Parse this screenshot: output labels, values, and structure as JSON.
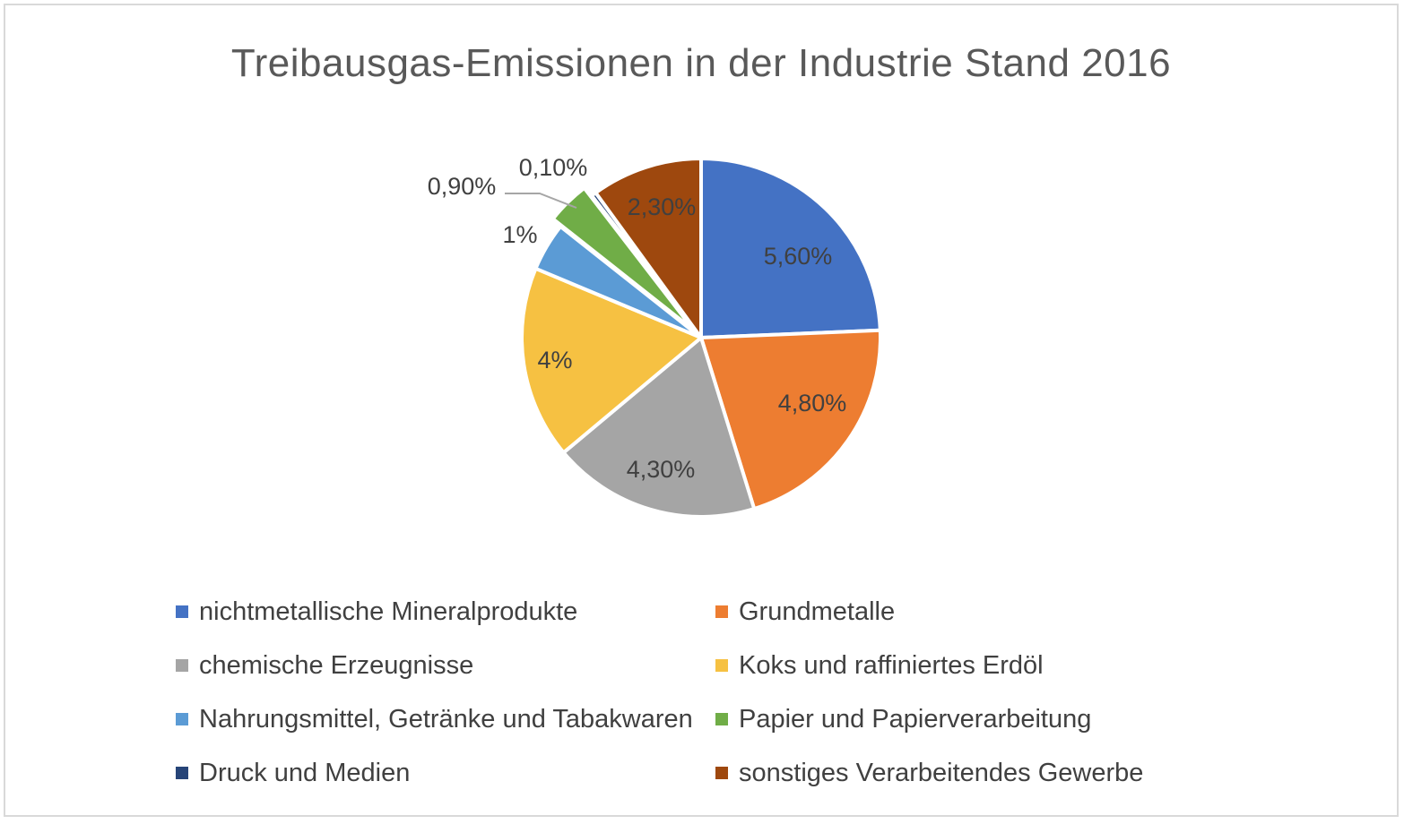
{
  "chart_data": {
    "type": "pie",
    "title": "Treibausgas-Emissionen in der Industrie Stand 2016",
    "categories": [
      "nichtmetallische Mineralprodukte",
      "Grundmetalle",
      "chemische Erzeugnisse",
      "Koks und raffiniertes Erdöl",
      "Nahrungsmittel, Getränke und Tabakwaren",
      "Papier und Papierverarbeitung",
      "Druck und Medien",
      "sonstiges Verarbeitendes Gewerbe"
    ],
    "values": [
      5.6,
      4.8,
      4.3,
      4.0,
      1.0,
      0.9,
      0.1,
      2.3
    ],
    "data_labels": [
      "5,60%",
      "4,80%",
      "4,30%",
      "4%",
      "1%",
      "0,90%",
      "0,10%",
      "2,30%"
    ],
    "colors": [
      "#4472C4",
      "#ED7D31",
      "#A5A5A5",
      "#F6C142",
      "#5B9BD5",
      "#70AD47",
      "#264478",
      "#9E480E"
    ],
    "unit": "%",
    "legend_position": "bottom",
    "legend_columns": 2
  }
}
